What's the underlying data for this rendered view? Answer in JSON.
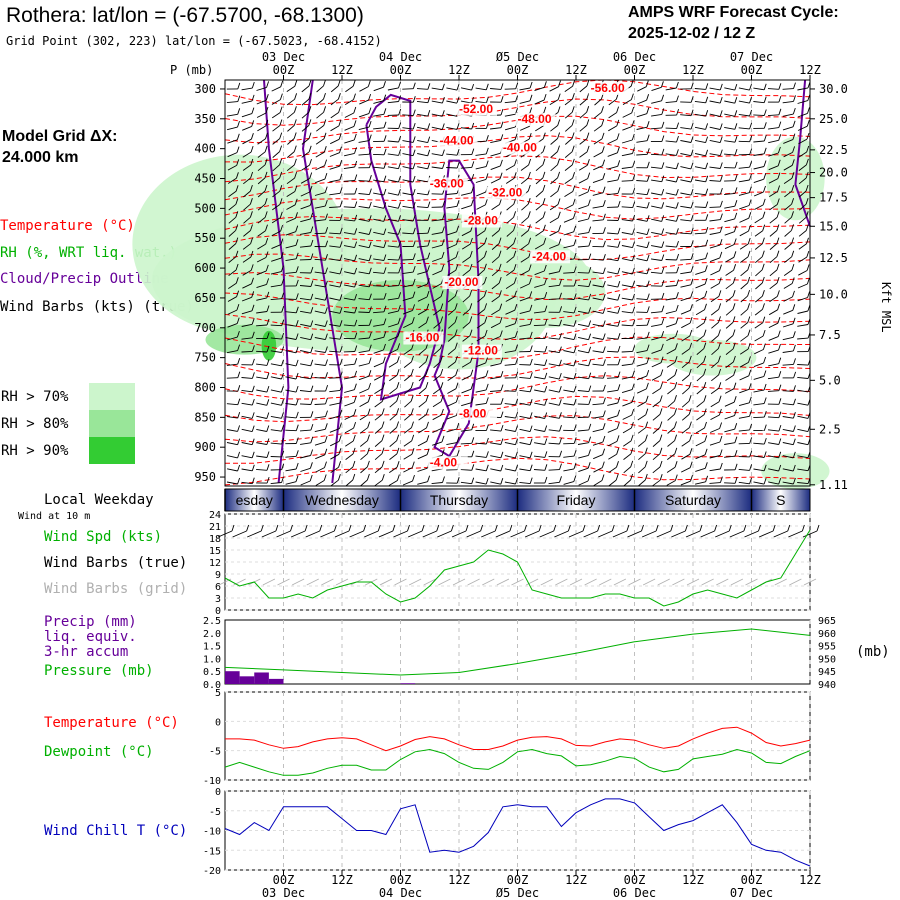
{
  "title": "Rothera:  lat/lon = (-67.5700, -68.1300)",
  "subtitle": "Grid Point (302, 223) lat/lon = (-67.5023, -68.4152)",
  "cycle_line1": "AMPS WRF Forecast Cycle:",
  "cycle_line2": "2025-12-02 / 12  Z",
  "model_grid_line1": "Model Grid ΔX:",
  "model_grid_line2": " 24.000 km",
  "legend_temperature": "Temperature (°C)",
  "legend_rh": "RH (%, WRT liq. wat.)",
  "legend_cloud": "Cloud/Precip Outline",
  "legend_wind": "Wind Barbs (kts) (true)",
  "rh_levels": [
    "RH > 70%",
    "RH > 80%",
    "RH > 90%"
  ],
  "p_axis_label": "P (mb)",
  "right_axis_label": "Kft MSL",
  "local_weekday_label": "Local Weekday",
  "wind_at_label": "Wind at 10 m",
  "mb_label": "(mb)",
  "panel_labels": {
    "wind_spd": "Wind Spd (kts)",
    "barbs_true": "Wind Barbs (true)",
    "barbs_grid": "Wind Barbs (grid)",
    "precip1": "Precip (mm)",
    "precip2": "liq. equiv.",
    "precip3": "3-hr accum",
    "pressure": "Pressure (mb)",
    "temperature": "Temperature (°C)",
    "dewpoint": "Dewpoint (°C)",
    "windchill": "Wind Chill T (°C)"
  },
  "colors": {
    "temperature": "#ff0000",
    "rh": "#00b000",
    "cloud": "#660099",
    "wind_spd": "#00b000",
    "grid_barb": "#b0b0b0",
    "precip": "#660099",
    "pressure": "#00b000",
    "dewpoint": "#00b000",
    "windchill": "#0000bb",
    "rh70": "#ccf5cc",
    "rh80": "#99e699",
    "rh90": "#33cc33",
    "day_band": "#8090c8"
  },
  "chart_data": [
    {
      "type": "heatmap",
      "name": "cross-section",
      "x_ticks": [
        "00Z",
        "12Z",
        "00Z",
        "12Z",
        "00Z",
        "12Z",
        "00Z",
        "12Z",
        "00Z",
        "12Z"
      ],
      "x_ticks_hours": [
        12,
        24,
        36,
        48,
        60,
        72,
        84,
        96,
        108,
        120
      ],
      "date_labels": [
        "03 Dec",
        "04 Dec",
        "Ø5 Dec",
        "06 Dec",
        "07 Dec"
      ],
      "date_hours": [
        12,
        36,
        60,
        84,
        108
      ],
      "p_ticks": [
        300,
        350,
        400,
        450,
        500,
        550,
        600,
        650,
        700,
        750,
        800,
        850,
        900,
        950
      ],
      "kft_ticks": [
        {
          "label": "30.0",
          "p": 300
        },
        {
          "label": "25.0",
          "p": 350
        },
        {
          "label": "22.5",
          "p": 402
        },
        {
          "label": "20.0",
          "p": 440
        },
        {
          "label": "17.5",
          "p": 482
        },
        {
          "label": "15.0",
          "p": 530
        },
        {
          "label": "12.5",
          "p": 583
        },
        {
          "label": "10.0",
          "p": 644
        },
        {
          "label": "7.5",
          "p": 712
        },
        {
          "label": "5.0",
          "p": 788
        },
        {
          "label": "2.5",
          "p": 870
        },
        {
          "label": "1.11",
          "p": 963
        }
      ],
      "ylim_p": [
        285,
        965
      ],
      "temperature_labels": [
        {
          "text": "-56.00",
          "h": 75,
          "p": 305
        },
        {
          "text": "-52.00",
          "h": 48,
          "p": 340
        },
        {
          "text": "-48.00",
          "h": 60,
          "p": 357
        },
        {
          "text": "-44.00",
          "h": 44,
          "p": 393
        },
        {
          "text": "-40.00",
          "h": 57,
          "p": 405
        },
        {
          "text": "-36.00",
          "h": 42,
          "p": 465
        },
        {
          "text": "-32.00",
          "h": 54,
          "p": 480
        },
        {
          "text": "-28.00",
          "h": 49,
          "p": 527
        },
        {
          "text": "-24.00",
          "h": 63,
          "p": 587
        },
        {
          "text": "-20.00",
          "h": 45,
          "p": 630
        },
        {
          "text": "-16.00",
          "h": 37,
          "p": 723
        },
        {
          "text": "-12.00",
          "h": 49,
          "p": 745
        },
        {
          "text": "-8.00",
          "h": 48,
          "p": 850
        },
        {
          "text": "-4.00",
          "h": 42,
          "p": 932
        }
      ],
      "temperature_isotherm_p": [
        308,
        340,
        368,
        400,
        432,
        465,
        497,
        530,
        563,
        597,
        630,
        665,
        700,
        735,
        770,
        803,
        838,
        870,
        905,
        940
      ]
    },
    {
      "type": "line",
      "name": "wind-speed",
      "hours": [
        0,
        3,
        6,
        9,
        12,
        15,
        18,
        21,
        24,
        27,
        30,
        33,
        36,
        39,
        42,
        45,
        48,
        51,
        54,
        57,
        60,
        63,
        66,
        69,
        72,
        75,
        78,
        81,
        84,
        87,
        90,
        93,
        96,
        99,
        102,
        105,
        108,
        111,
        114,
        117,
        120
      ],
      "series": [
        {
          "name": "Wind Spd (kts)",
          "values": [
            8,
            6,
            7,
            3,
            3,
            4,
            3,
            5,
            6,
            7,
            7,
            4,
            2,
            3,
            6,
            10,
            11,
            12,
            15,
            14,
            12,
            5,
            4,
            3,
            3,
            3,
            4,
            4,
            3,
            3,
            1,
            2,
            4,
            5,
            4,
            3,
            5,
            7,
            8,
            14,
            20
          ]
        }
      ],
      "ylim": [
        0,
        24
      ],
      "y_ticks": [
        0,
        3,
        6,
        9,
        12,
        15,
        18,
        21,
        24
      ]
    },
    {
      "type": "line",
      "name": "precip-pressure",
      "precip_hours": [
        0,
        3,
        6,
        9,
        12,
        15,
        18,
        21,
        24,
        27,
        30,
        33,
        36,
        39,
        42,
        45,
        48,
        51,
        54,
        57,
        60,
        63,
        66,
        69,
        72,
        75,
        78,
        81,
        84,
        87,
        90,
        93,
        96,
        99,
        102,
        105,
        108,
        111,
        114,
        117,
        120
      ],
      "precip_mm": [
        0.5,
        0.3,
        0.45,
        0.2,
        0,
        0,
        0,
        0,
        0,
        0,
        0,
        0,
        0.03,
        0,
        0,
        0,
        0,
        0,
        0,
        0,
        0,
        0,
        0,
        0,
        0,
        0,
        0,
        0,
        0,
        0,
        0,
        0,
        0,
        0,
        0,
        0,
        0,
        0,
        0,
        0,
        0
      ],
      "precip_ylim": [
        0,
        2.5
      ],
      "precip_ticks": [
        "0.0",
        "0.5",
        "1.0",
        "1.5",
        "2.0",
        "2.5"
      ],
      "pressure_hours": [
        0,
        12,
        24,
        36,
        48,
        60,
        72,
        84,
        96,
        108,
        120
      ],
      "pressure_mb": [
        946.5,
        945.5,
        944.5,
        943.5,
        944.5,
        948,
        952,
        956.5,
        959.5,
        961.5,
        959
      ],
      "pressure_ylim": [
        940,
        965
      ],
      "pressure_ticks": [
        "940",
        "945",
        "950",
        "955",
        "960",
        "965"
      ]
    },
    {
      "type": "line",
      "name": "temperature-dewpoint",
      "hours": [
        0,
        3,
        6,
        9,
        12,
        15,
        18,
        21,
        24,
        27,
        30,
        33,
        36,
        39,
        42,
        45,
        48,
        51,
        54,
        57,
        60,
        63,
        66,
        69,
        72,
        75,
        78,
        81,
        84,
        87,
        90,
        93,
        96,
        99,
        102,
        105,
        108,
        111,
        114,
        117,
        120
      ],
      "series": [
        {
          "name": "Temperature (°C)",
          "values": [
            -3,
            -3,
            -3.2,
            -4,
            -4.6,
            -4.3,
            -3.5,
            -3,
            -2.8,
            -3,
            -4,
            -5,
            -4.2,
            -3.1,
            -2.6,
            -3,
            -4,
            -4.8,
            -4.8,
            -4.2,
            -3.2,
            -2.7,
            -2.6,
            -3,
            -4.1,
            -4.2,
            -3.5,
            -3,
            -3.2,
            -4,
            -4.6,
            -4.2,
            -3,
            -2,
            -1.2,
            -1,
            -2,
            -3.6,
            -4.2,
            -3.8,
            -3.2
          ]
        },
        {
          "name": "Dewpoint (°C)",
          "values": [
            -7.8,
            -7,
            -7.8,
            -8.6,
            -9.2,
            -9.2,
            -8.8,
            -8,
            -7.5,
            -7.5,
            -8.3,
            -8.3,
            -6.5,
            -5.2,
            -4.8,
            -5.5,
            -7,
            -8,
            -8.2,
            -7,
            -5.2,
            -4.8,
            -5.5,
            -5.9,
            -7.6,
            -7.4,
            -6.8,
            -6,
            -6.3,
            -7.8,
            -8.6,
            -8.2,
            -6.4,
            -6,
            -5.6,
            -4.8,
            -5.4,
            -7,
            -7.2,
            -6,
            -5
          ]
        }
      ],
      "ylim": [
        -10,
        5
      ],
      "y_ticks": [
        "-10",
        "-5",
        "0",
        "5"
      ]
    },
    {
      "type": "line",
      "name": "wind-chill",
      "hours": [
        0,
        3,
        6,
        9,
        12,
        15,
        18,
        21,
        24,
        27,
        30,
        33,
        36,
        39,
        42,
        45,
        48,
        51,
        54,
        57,
        60,
        63,
        66,
        69,
        72,
        75,
        78,
        81,
        84,
        87,
        90,
        93,
        96,
        99,
        102,
        105,
        108,
        111,
        114,
        117,
        120
      ],
      "series": [
        {
          "name": "Wind Chill T (°C)",
          "values": [
            -9.5,
            -11,
            -8,
            -10,
            -4,
            -4,
            -4,
            -4,
            -7,
            -10,
            -10,
            -11,
            -4.5,
            -3.5,
            -15.5,
            -15,
            -15.5,
            -14,
            -10.5,
            -4,
            -3.5,
            -4,
            -4,
            -9,
            -5.5,
            -3.5,
            -2,
            -2,
            -3,
            -6.5,
            -10,
            -8.5,
            -7.5,
            -5.5,
            -3.5,
            -8,
            -13.5,
            -15,
            -15.5,
            -17.5,
            -19
          ]
        }
      ],
      "ylim": [
        -20,
        0
      ],
      "y_ticks": [
        "-20",
        "-15",
        "-10",
        "-5",
        "0"
      ]
    }
  ],
  "weekdays": [
    {
      "label": "esday",
      "start": 0,
      "end": 12
    },
    {
      "label": "Wednesday",
      "start": 12,
      "end": 36
    },
    {
      "label": "Thursday",
      "start": 36,
      "end": 60
    },
    {
      "label": "Friday",
      "start": 60,
      "end": 84
    },
    {
      "label": "Saturday",
      "start": 84,
      "end": 108
    },
    {
      "label": "S",
      "start": 108,
      "end": 120
    }
  ]
}
